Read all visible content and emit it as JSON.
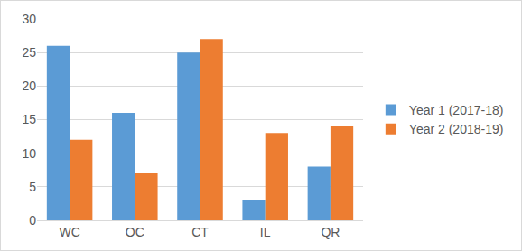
{
  "chart_data": {
    "type": "bar",
    "categories": [
      "WC",
      "OC",
      "CT",
      "IL",
      "QR"
    ],
    "series": [
      {
        "name": "Year 1 (2017-18)",
        "color": "#5b9bd5",
        "values": [
          26,
          16,
          25,
          3,
          8
        ]
      },
      {
        "name": "Year 2 (2018-19)",
        "color": "#ed7d31",
        "values": [
          12,
          7,
          27,
          13,
          14
        ]
      }
    ],
    "ylim": [
      0,
      30
    ],
    "yticks": [
      0,
      5,
      10,
      15,
      20,
      25,
      30
    ],
    "grid": true,
    "legend": "right"
  }
}
